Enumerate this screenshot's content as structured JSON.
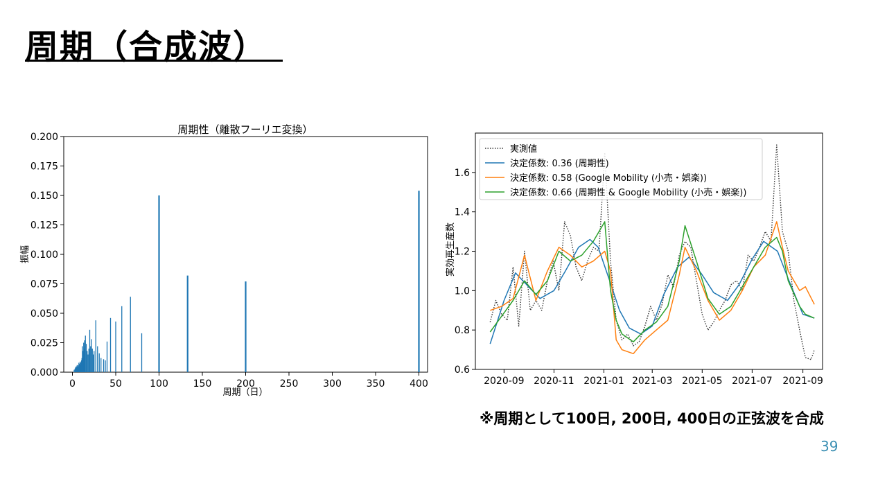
{
  "slide": {
    "title": "周期（合成波）",
    "note": "※周期として100日, 200日, 400日の正弦波を合成",
    "page_number": "39"
  },
  "colors": {
    "bar": "#1f77b4",
    "measured": "#333333",
    "periodic": "#1f77b4",
    "mobility": "#ff7f0e",
    "combined": "#2ca02c",
    "page_number": "#3b8fb3"
  },
  "chart_data": [
    {
      "type": "bar",
      "title": "周期性（離散フーリエ変換）",
      "xlabel": "周期（日）",
      "ylabel": "振幅",
      "xlim": [
        -10,
        410
      ],
      "ylim": [
        0,
        0.2
      ],
      "xticks": [
        "0",
        "50",
        "100",
        "150",
        "200",
        "250",
        "300",
        "350",
        "400"
      ],
      "yticks": [
        "0.000",
        "0.025",
        "0.050",
        "0.075",
        "0.100",
        "0.125",
        "0.150",
        "0.175",
        "0.200"
      ],
      "x": [
        2,
        3,
        3.5,
        4,
        4.5,
        5,
        5.5,
        6,
        6.5,
        7,
        7.5,
        8,
        8.5,
        9,
        9.5,
        10,
        10.5,
        11,
        11.5,
        12,
        12.5,
        13,
        13.5,
        14,
        14.5,
        15,
        16,
        17,
        18,
        19,
        20,
        21,
        22,
        23,
        24,
        25,
        27,
        29,
        31,
        33,
        36,
        38,
        40,
        44,
        50,
        57,
        67,
        80,
        100,
        133,
        200,
        400
      ],
      "values": [
        0.002,
        0.003,
        0.004,
        0.003,
        0.005,
        0.004,
        0.006,
        0.005,
        0.004,
        0.006,
        0.008,
        0.007,
        0.006,
        0.009,
        0.008,
        0.005,
        0.01,
        0.012,
        0.022,
        0.015,
        0.018,
        0.025,
        0.02,
        0.027,
        0.022,
        0.031,
        0.024,
        0.018,
        0.015,
        0.02,
        0.036,
        0.022,
        0.028,
        0.02,
        0.015,
        0.018,
        0.044,
        0.022,
        0.016,
        0.012,
        0.011,
        0.01,
        0.026,
        0.046,
        0.043,
        0.056,
        0.064,
        0.033,
        0.15,
        0.082,
        0.077,
        0.154
      ]
    },
    {
      "type": "line",
      "ylabel": "実効再生産数",
      "xticks": [
        "2020-09",
        "2020-11",
        "2021-01",
        "2021-03",
        "2021-05",
        "2021-07",
        "2021-09"
      ],
      "yticks": [
        "0.6",
        "0.8",
        "1.0",
        "1.2",
        "1.4",
        "1.6"
      ],
      "ylim": [
        0.6,
        1.8
      ],
      "legend_position": "top-left",
      "series": [
        {
          "name": "実測値",
          "style": "dotted",
          "x": [
            "2020-08-15",
            "2020-08-22",
            "2020-08-29",
            "2020-09-05",
            "2020-09-12",
            "2020-09-19",
            "2020-09-26",
            "2020-10-03",
            "2020-10-10",
            "2020-10-17",
            "2020-10-24",
            "2020-10-31",
            "2020-11-07",
            "2020-11-14",
            "2020-11-21",
            "2020-11-28",
            "2020-12-05",
            "2020-12-12",
            "2020-12-19",
            "2020-12-26",
            "2021-01-02",
            "2021-01-09",
            "2021-01-16",
            "2021-01-23",
            "2021-01-30",
            "2021-02-06",
            "2021-02-13",
            "2021-02-20",
            "2021-02-27",
            "2021-03-06",
            "2021-03-13",
            "2021-03-20",
            "2021-03-27",
            "2021-04-03",
            "2021-04-10",
            "2021-04-17",
            "2021-04-24",
            "2021-05-01",
            "2021-05-08",
            "2021-05-15",
            "2021-05-22",
            "2021-05-29",
            "2021-06-05",
            "2021-06-12",
            "2021-06-19",
            "2021-06-26",
            "2021-07-03",
            "2021-07-10",
            "2021-07-17",
            "2021-07-24",
            "2021-07-31",
            "2021-08-07",
            "2021-08-14",
            "2021-08-21",
            "2021-08-28",
            "2021-09-04",
            "2021-09-11",
            "2021-09-15"
          ],
          "values": [
            0.84,
            0.95,
            0.88,
            0.85,
            1.12,
            0.82,
            1.2,
            0.9,
            0.95,
            0.9,
            1.05,
            1.15,
            1.0,
            1.35,
            1.28,
            1.12,
            1.05,
            1.15,
            1.22,
            1.2,
            1.7,
            1.15,
            0.85,
            0.75,
            0.78,
            0.72,
            0.74,
            0.82,
            0.92,
            0.85,
            0.93,
            1.08,
            1.02,
            1.18,
            1.25,
            1.22,
            1.05,
            0.88,
            0.8,
            0.84,
            0.9,
            0.95,
            1.03,
            1.05,
            1.0,
            1.18,
            1.15,
            1.22,
            1.3,
            1.25,
            1.74,
            1.3,
            1.2,
            0.95,
            0.8,
            0.66,
            0.65,
            0.7
          ]
        },
        {
          "name": "決定係数: 0.36 (周期性)",
          "style": "solid",
          "x": [
            "2020-08-15",
            "2020-09-01",
            "2020-09-15",
            "2020-10-01",
            "2020-10-15",
            "2020-11-01",
            "2020-11-15",
            "2020-12-01",
            "2020-12-15",
            "2020-12-25",
            "2021-01-08",
            "2021-01-20",
            "2021-02-01",
            "2021-02-15",
            "2021-03-01",
            "2021-03-15",
            "2021-04-01",
            "2021-04-15",
            "2021-05-01",
            "2021-05-15",
            "2021-06-01",
            "2021-06-15",
            "2021-07-01",
            "2021-07-15",
            "2021-08-01",
            "2021-08-15",
            "2021-09-01",
            "2021-09-15"
          ],
          "values": [
            0.73,
            0.95,
            1.09,
            1.02,
            0.96,
            1.0,
            1.1,
            1.22,
            1.26,
            1.22,
            1.05,
            0.9,
            0.81,
            0.78,
            0.82,
            0.98,
            1.12,
            1.17,
            1.08,
            0.99,
            0.95,
            1.03,
            1.16,
            1.25,
            1.2,
            1.05,
            0.88,
            0.86
          ]
        },
        {
          "name": "決定係数: 0.58 (Google Mobility (小売・娯楽))",
          "style": "solid",
          "x": [
            "2020-08-15",
            "2020-08-29",
            "2020-09-12",
            "2020-09-26",
            "2020-10-10",
            "2020-10-24",
            "2020-11-07",
            "2020-11-21",
            "2020-12-05",
            "2020-12-19",
            "2021-01-02",
            "2021-01-09",
            "2021-01-16",
            "2021-01-23",
            "2021-02-06",
            "2021-02-20",
            "2021-03-06",
            "2021-03-20",
            "2021-04-03",
            "2021-04-10",
            "2021-04-24",
            "2021-05-08",
            "2021-05-22",
            "2021-06-05",
            "2021-06-19",
            "2021-07-03",
            "2021-07-17",
            "2021-07-31",
            "2021-08-07",
            "2021-08-14",
            "2021-08-28",
            "2021-09-04",
            "2021-09-15"
          ],
          "values": [
            0.9,
            0.92,
            0.96,
            1.18,
            0.95,
            1.1,
            1.22,
            1.18,
            1.12,
            1.15,
            1.2,
            1.1,
            0.75,
            0.7,
            0.68,
            0.75,
            0.8,
            0.85,
            1.08,
            1.22,
            1.1,
            0.95,
            0.85,
            0.9,
            1.0,
            1.12,
            1.18,
            1.35,
            1.22,
            1.1,
            1.0,
            1.02,
            0.93
          ]
        },
        {
          "name": "決定係数: 0.66 (周期性 & Google Mobility (小売・娯楽))",
          "style": "solid",
          "x": [
            "2020-08-15",
            "2020-08-29",
            "2020-09-12",
            "2020-09-26",
            "2020-10-10",
            "2020-10-24",
            "2020-11-07",
            "2020-11-21",
            "2020-12-05",
            "2020-12-19",
            "2021-01-02",
            "2021-01-09",
            "2021-01-16",
            "2021-01-23",
            "2021-02-06",
            "2021-02-20",
            "2021-03-06",
            "2021-03-20",
            "2021-04-03",
            "2021-04-10",
            "2021-04-24",
            "2021-05-08",
            "2021-05-22",
            "2021-06-05",
            "2021-06-19",
            "2021-07-03",
            "2021-07-17",
            "2021-07-31",
            "2021-08-07",
            "2021-08-14",
            "2021-08-28",
            "2021-09-04",
            "2021-09-15"
          ],
          "values": [
            0.79,
            0.87,
            0.95,
            1.05,
            0.98,
            1.05,
            1.2,
            1.15,
            1.18,
            1.25,
            1.35,
            1.0,
            0.85,
            0.78,
            0.74,
            0.8,
            0.84,
            0.92,
            1.15,
            1.33,
            1.15,
            0.96,
            0.88,
            0.92,
            1.02,
            1.12,
            1.22,
            1.27,
            1.2,
            1.05,
            0.92,
            0.88,
            0.86
          ]
        }
      ]
    }
  ]
}
